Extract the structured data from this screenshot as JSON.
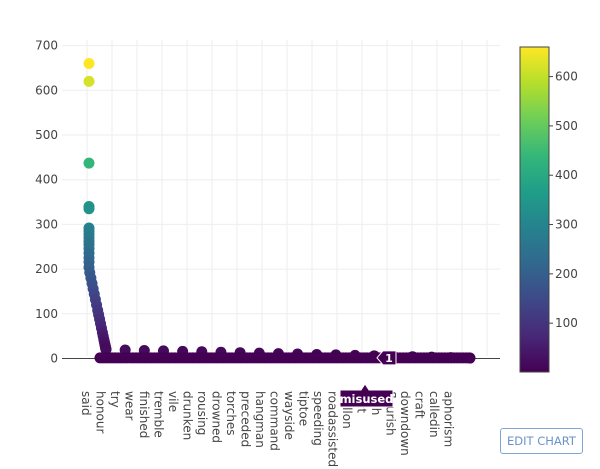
{
  "chart_data": {
    "type": "scatter",
    "categories": [
      "said",
      "honour",
      "try",
      "wear",
      "finished",
      "tremble",
      "vile",
      "drunken",
      "rousing",
      "drowned",
      "torches",
      "preceded",
      "hangman",
      "command",
      "wayside",
      "tiptoe",
      "speeding",
      "roadassisted",
      "titillon",
      "ject",
      "vish",
      "flourish",
      "downdown",
      "craft",
      "calledin",
      "aphorism"
    ],
    "values": [
      660,
      620,
      437,
      340,
      335,
      292,
      285,
      278,
      270,
      262,
      255,
      246,
      236,
      226,
      216,
      204,
      192,
      180,
      168,
      156,
      144,
      132,
      120,
      108,
      98,
      88,
      78,
      68,
      58,
      50,
      43,
      38,
      33,
      30,
      27,
      25,
      23,
      21,
      20,
      19,
      18,
      17,
      16,
      15,
      14,
      13,
      12,
      11,
      10,
      9,
      8,
      7,
      6,
      5,
      4,
      3,
      2,
      1
    ],
    "ylim": [
      0,
      700
    ],
    "yticks": [
      0,
      100,
      200,
      300,
      400,
      500,
      600,
      700
    ],
    "grid": true,
    "colorscale": "viridis",
    "colorbar": {
      "range": [
        1,
        660
      ],
      "ticks": [
        100,
        200,
        300,
        400,
        500,
        600
      ]
    },
    "hover": {
      "x_label": "misused",
      "y_value": "1"
    }
  },
  "colors": {
    "viridis": [
      "#440154",
      "#482878",
      "#3e4989",
      "#31688e",
      "#26828e",
      "#1f9e89",
      "#35b779",
      "#6ece58",
      "#b5de2b",
      "#fde725"
    ],
    "grid": "#eeeeee",
    "zero_line": "#444444",
    "hover_bg": "#440154"
  },
  "toolbar": {
    "edit_label": "EDIT CHART"
  }
}
